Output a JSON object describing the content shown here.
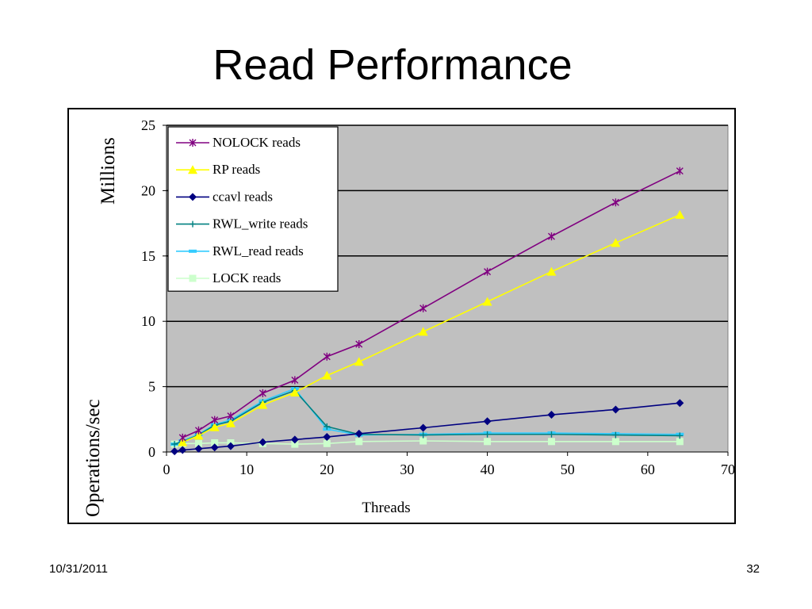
{
  "slide": {
    "title": "Read Performance",
    "date": "10/31/2011",
    "page_number": "32"
  },
  "chart_data": {
    "type": "line",
    "title": "",
    "xlabel": "Threads",
    "ylabel": "Operations/sec",
    "y_unit_label": "Millions",
    "xlim": [
      0,
      70
    ],
    "ylim": [
      0,
      25
    ],
    "x_ticks": [
      0,
      10,
      20,
      30,
      40,
      50,
      60,
      70
    ],
    "y_ticks": [
      0,
      5,
      10,
      15,
      20,
      25
    ],
    "grid": "horizontal",
    "plot_background": "#c0c0c0",
    "legend_position": "top-left inside",
    "series": [
      {
        "name": "NOLOCK reads",
        "color": "#800080",
        "marker": "star",
        "x": [
          2,
          4,
          6,
          8,
          12,
          16,
          20,
          24,
          32,
          40,
          48,
          56,
          64
        ],
        "y": [
          1.1,
          1.65,
          2.45,
          2.75,
          4.5,
          5.5,
          7.3,
          8.25,
          11.0,
          13.8,
          16.5,
          19.1,
          21.5
        ]
      },
      {
        "name": "RP reads",
        "color": "#ffff00",
        "marker": "triangle",
        "x": [
          2,
          4,
          6,
          8,
          12,
          16,
          20,
          24,
          32,
          40,
          48,
          56,
          64
        ],
        "y": [
          0.75,
          1.25,
          1.9,
          2.2,
          3.6,
          4.55,
          5.85,
          6.9,
          9.2,
          11.5,
          13.8,
          16.0,
          18.15
        ]
      },
      {
        "name": "ccavl reads",
        "color": "#000080",
        "marker": "diamond",
        "x": [
          1,
          2,
          4,
          6,
          8,
          12,
          16,
          20,
          24,
          32,
          40,
          48,
          56,
          64
        ],
        "y": [
          0.05,
          0.15,
          0.25,
          0.35,
          0.45,
          0.75,
          0.95,
          1.15,
          1.4,
          1.85,
          2.35,
          2.85,
          3.25,
          3.75
        ]
      },
      {
        "name": "RWL_write reads",
        "color": "#008080",
        "marker": "plus",
        "x": [
          1,
          2,
          4,
          6,
          8,
          12,
          16,
          20,
          24,
          32,
          40,
          48,
          56,
          64
        ],
        "y": [
          0.6,
          0.8,
          1.3,
          2.05,
          2.35,
          3.8,
          4.7,
          1.95,
          1.35,
          1.3,
          1.35,
          1.35,
          1.3,
          1.25
        ]
      },
      {
        "name": "RWL_read reads",
        "color": "#33ccff",
        "marker": "dash",
        "x": [
          1,
          2,
          4,
          6,
          8,
          12,
          16,
          20,
          24,
          32,
          40,
          48,
          56,
          64
        ],
        "y": [
          0.6,
          0.85,
          1.35,
          2.1,
          2.45,
          3.9,
          4.85,
          1.75,
          1.3,
          1.35,
          1.45,
          1.45,
          1.4,
          1.35
        ]
      },
      {
        "name": "LOCK reads",
        "color": "#ccffcc",
        "marker": "square",
        "x": [
          1,
          2,
          4,
          6,
          8,
          12,
          16,
          20,
          24,
          32,
          40,
          48,
          56,
          64
        ],
        "y": [
          0.6,
          0.65,
          0.65,
          0.7,
          0.7,
          0.65,
          0.6,
          0.65,
          0.8,
          0.85,
          0.8,
          0.8,
          0.8,
          0.8
        ]
      }
    ]
  }
}
